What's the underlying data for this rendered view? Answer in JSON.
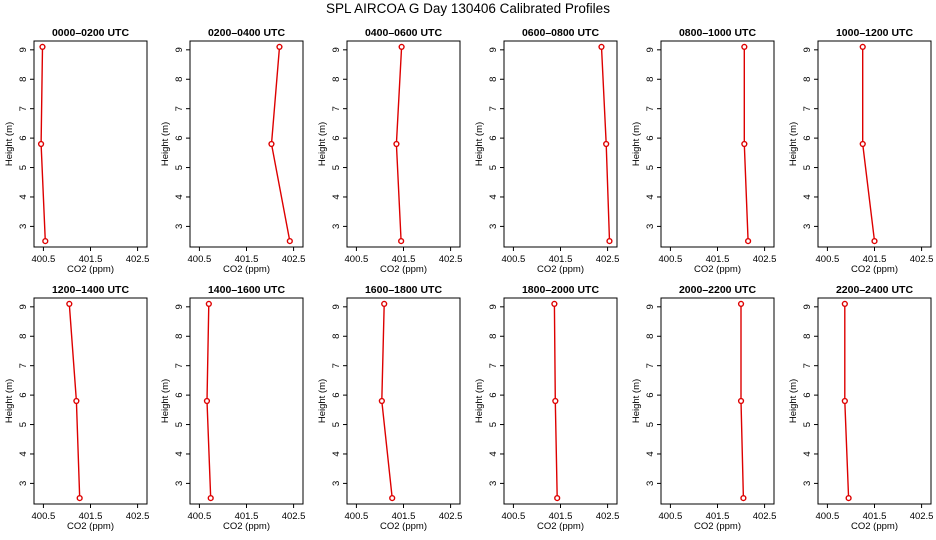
{
  "title": "SPL AIRCOA G  Day 130406  Calibrated Profiles",
  "colors": {
    "line": "#dd0000",
    "axis": "#000000",
    "background": "#ffffff"
  },
  "chart_data": [
    {
      "type": "line",
      "title": "0000–0200 UTC",
      "xlabel": "CO2 (ppm)",
      "ylabel": "Height (m)",
      "xlim": [
        400.3,
        402.7
      ],
      "ylim": [
        2.3,
        9.3
      ],
      "xticks": [
        "400.5",
        "401.5",
        "402.5"
      ],
      "yticks": [
        "3",
        "4",
        "5",
        "6",
        "7",
        "8",
        "9"
      ],
      "grid": false,
      "series": [
        {
          "x": [
            400.48,
            400.45,
            400.54
          ],
          "y": [
            9.1,
            5.8,
            2.5
          ]
        }
      ]
    },
    {
      "type": "line",
      "title": "0200–0400 UTC",
      "xlabel": "CO2 (ppm)",
      "ylabel": "Height (m)",
      "xlim": [
        400.3,
        402.7
      ],
      "ylim": [
        2.3,
        9.3
      ],
      "xticks": [
        "400.5",
        "401.5",
        "402.5"
      ],
      "yticks": [
        "3",
        "4",
        "5",
        "6",
        "7",
        "8",
        "9"
      ],
      "grid": false,
      "series": [
        {
          "x": [
            402.2,
            402.03,
            402.42
          ],
          "y": [
            9.1,
            5.8,
            2.5
          ]
        }
      ]
    },
    {
      "type": "line",
      "title": "0400–0600 UTC",
      "xlabel": "CO2 (ppm)",
      "ylabel": "Height (m)",
      "xlim": [
        400.3,
        402.7
      ],
      "ylim": [
        2.3,
        9.3
      ],
      "xticks": [
        "400.5",
        "401.5",
        "402.5"
      ],
      "yticks": [
        "3",
        "4",
        "5",
        "6",
        "7",
        "8",
        "9"
      ],
      "grid": false,
      "series": [
        {
          "x": [
            401.46,
            401.35,
            401.45
          ],
          "y": [
            9.1,
            5.8,
            2.5
          ]
        }
      ]
    },
    {
      "type": "line",
      "title": "0600–0800 UTC",
      "xlabel": "CO2 (ppm)",
      "ylabel": "Height (m)",
      "xlim": [
        400.3,
        402.7
      ],
      "ylim": [
        2.3,
        9.3
      ],
      "xticks": [
        "400.5",
        "401.5",
        "402.5"
      ],
      "yticks": [
        "3",
        "4",
        "5",
        "6",
        "7",
        "8",
        "9"
      ],
      "grid": false,
      "series": [
        {
          "x": [
            402.37,
            402.47,
            402.54
          ],
          "y": [
            9.1,
            5.8,
            2.5
          ]
        }
      ]
    },
    {
      "type": "line",
      "title": "0800–1000 UTC",
      "xlabel": "CO2 (ppm)",
      "ylabel": "Height (m)",
      "xlim": [
        400.3,
        402.7
      ],
      "ylim": [
        2.3,
        9.3
      ],
      "xticks": [
        "400.5",
        "401.5",
        "402.5"
      ],
      "yticks": [
        "3",
        "4",
        "5",
        "6",
        "7",
        "8",
        "9"
      ],
      "grid": false,
      "series": [
        {
          "x": [
            402.07,
            402.07,
            402.15
          ],
          "y": [
            9.1,
            5.8,
            2.5
          ]
        }
      ]
    },
    {
      "type": "line",
      "title": "1000–1200 UTC",
      "xlabel": "CO2 (ppm)",
      "ylabel": "Height (m)",
      "xlim": [
        400.3,
        402.7
      ],
      "ylim": [
        2.3,
        9.3
      ],
      "xticks": [
        "400.5",
        "401.5",
        "402.5"
      ],
      "yticks": [
        "3",
        "4",
        "5",
        "6",
        "7",
        "8",
        "9"
      ],
      "grid": false,
      "series": [
        {
          "x": [
            401.25,
            401.25,
            401.5
          ],
          "y": [
            9.1,
            5.8,
            2.5
          ]
        }
      ]
    },
    {
      "type": "line",
      "title": "1200–1400 UTC",
      "xlabel": "CO2 (ppm)",
      "ylabel": "Height (m)",
      "xlim": [
        400.3,
        402.7
      ],
      "ylim": [
        2.3,
        9.3
      ],
      "xticks": [
        "400.5",
        "401.5",
        "402.5"
      ],
      "yticks": [
        "3",
        "4",
        "5",
        "6",
        "7",
        "8",
        "9"
      ],
      "grid": false,
      "series": [
        {
          "x": [
            401.05,
            401.2,
            401.27
          ],
          "y": [
            9.1,
            5.8,
            2.5
          ]
        }
      ]
    },
    {
      "type": "line",
      "title": "1400–1600 UTC",
      "xlabel": "CO2 (ppm)",
      "ylabel": "Height (m)",
      "xlim": [
        400.3,
        402.7
      ],
      "ylim": [
        2.3,
        9.3
      ],
      "xticks": [
        "400.5",
        "401.5",
        "402.5"
      ],
      "yticks": [
        "3",
        "4",
        "5",
        "6",
        "7",
        "8",
        "9"
      ],
      "grid": false,
      "series": [
        {
          "x": [
            400.7,
            400.66,
            400.74
          ],
          "y": [
            9.1,
            5.8,
            2.5
          ]
        }
      ]
    },
    {
      "type": "line",
      "title": "1600–1800 UTC",
      "xlabel": "CO2 (ppm)",
      "ylabel": "Height (m)",
      "xlim": [
        400.3,
        402.7
      ],
      "ylim": [
        2.3,
        9.3
      ],
      "xticks": [
        "400.5",
        "401.5",
        "402.5"
      ],
      "yticks": [
        "3",
        "4",
        "5",
        "6",
        "7",
        "8",
        "9"
      ],
      "grid": false,
      "series": [
        {
          "x": [
            401.09,
            401.04,
            401.26
          ],
          "y": [
            9.1,
            5.8,
            2.5
          ]
        }
      ]
    },
    {
      "type": "line",
      "title": "1800–2000 UTC",
      "xlabel": "CO2 (ppm)",
      "ylabel": "Height (m)",
      "xlim": [
        400.3,
        402.7
      ],
      "ylim": [
        2.3,
        9.3
      ],
      "xticks": [
        "400.5",
        "401.5",
        "402.5"
      ],
      "yticks": [
        "3",
        "4",
        "5",
        "6",
        "7",
        "8",
        "9"
      ],
      "grid": false,
      "series": [
        {
          "x": [
            401.37,
            401.39,
            401.43
          ],
          "y": [
            9.1,
            5.8,
            2.5
          ]
        }
      ]
    },
    {
      "type": "line",
      "title": "2000–2200 UTC",
      "xlabel": "CO2 (ppm)",
      "ylabel": "Height (m)",
      "xlim": [
        400.3,
        402.7
      ],
      "ylim": [
        2.3,
        9.3
      ],
      "xticks": [
        "400.5",
        "401.5",
        "402.5"
      ],
      "yticks": [
        "3",
        "4",
        "5",
        "6",
        "7",
        "8",
        "9"
      ],
      "grid": false,
      "series": [
        {
          "x": [
            402.0,
            402.0,
            402.05
          ],
          "y": [
            9.1,
            5.8,
            2.5
          ]
        }
      ]
    },
    {
      "type": "line",
      "title": "2200–2400 UTC",
      "xlabel": "CO2 (ppm)",
      "ylabel": "Height (m)",
      "xlim": [
        400.3,
        402.7
      ],
      "ylim": [
        2.3,
        9.3
      ],
      "xticks": [
        "400.5",
        "401.5",
        "402.5"
      ],
      "yticks": [
        "3",
        "4",
        "5",
        "6",
        "7",
        "8",
        "9"
      ],
      "grid": false,
      "series": [
        {
          "x": [
            400.87,
            400.87,
            400.95
          ],
          "y": [
            9.1,
            5.8,
            2.5
          ]
        }
      ]
    }
  ]
}
